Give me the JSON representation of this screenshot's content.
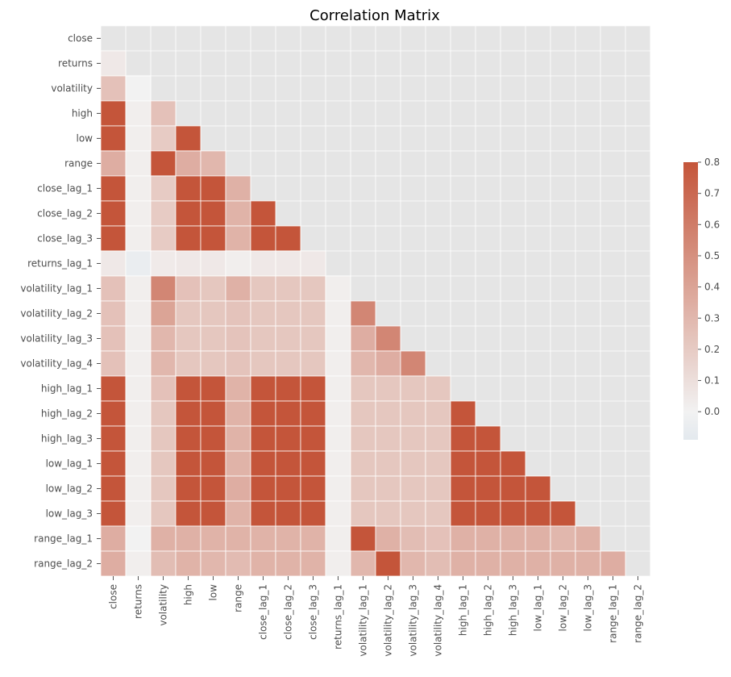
{
  "chart_data": {
    "type": "heatmap",
    "title": "Correlation Matrix",
    "xlabel": "",
    "ylabel": "",
    "mask": "upper-triangle-including-diagonal",
    "variables": [
      "close",
      "returns",
      "volatility",
      "high",
      "low",
      "range",
      "close_lag_1",
      "close_lag_2",
      "close_lag_3",
      "returns_lag_1",
      "volatility_lag_1",
      "volatility_lag_2",
      "volatility_lag_3",
      "volatility_lag_4",
      "high_lag_1",
      "high_lag_2",
      "high_lag_3",
      "low_lag_1",
      "low_lag_2",
      "low_lag_3",
      "range_lag_1",
      "range_lag_2"
    ],
    "values": [
      [],
      [
        0.05
      ],
      [
        0.25,
        0.0
      ],
      [
        0.8,
        0.02,
        0.25
      ],
      [
        0.8,
        0.02,
        0.2,
        0.8
      ],
      [
        0.35,
        0.02,
        0.8,
        0.35,
        0.3
      ],
      [
        0.8,
        0.02,
        0.2,
        0.8,
        0.8,
        0.33
      ],
      [
        0.8,
        0.02,
        0.2,
        0.8,
        0.8,
        0.32,
        0.8
      ],
      [
        0.8,
        0.02,
        0.2,
        0.8,
        0.8,
        0.32,
        0.8,
        0.8
      ],
      [
        0.05,
        -0.05,
        0.04,
        0.05,
        0.05,
        0.02,
        0.05,
        0.05,
        0.05
      ],
      [
        0.25,
        0.02,
        0.55,
        0.25,
        0.22,
        0.33,
        0.22,
        0.22,
        0.22,
        0.02
      ],
      [
        0.25,
        0.02,
        0.4,
        0.22,
        0.22,
        0.24,
        0.22,
        0.22,
        0.22,
        0.02,
        0.55
      ],
      [
        0.25,
        0.02,
        0.3,
        0.22,
        0.22,
        0.24,
        0.22,
        0.22,
        0.22,
        0.02,
        0.35,
        0.55
      ],
      [
        0.25,
        0.02,
        0.3,
        0.22,
        0.22,
        0.24,
        0.22,
        0.22,
        0.22,
        0.02,
        0.3,
        0.35,
        0.55
      ],
      [
        0.8,
        0.02,
        0.25,
        0.8,
        0.8,
        0.32,
        0.8,
        0.8,
        0.8,
        0.02,
        0.22,
        0.22,
        0.22,
        0.22
      ],
      [
        0.8,
        0.02,
        0.22,
        0.8,
        0.8,
        0.32,
        0.8,
        0.8,
        0.8,
        0.02,
        0.22,
        0.22,
        0.22,
        0.22,
        0.8
      ],
      [
        0.8,
        0.02,
        0.22,
        0.8,
        0.8,
        0.32,
        0.8,
        0.8,
        0.8,
        0.02,
        0.22,
        0.22,
        0.22,
        0.22,
        0.8,
        0.8
      ],
      [
        0.8,
        0.02,
        0.22,
        0.8,
        0.8,
        0.32,
        0.8,
        0.8,
        0.8,
        0.02,
        0.22,
        0.22,
        0.22,
        0.22,
        0.8,
        0.8,
        0.8
      ],
      [
        0.8,
        0.02,
        0.22,
        0.8,
        0.8,
        0.35,
        0.8,
        0.8,
        0.8,
        0.02,
        0.22,
        0.22,
        0.22,
        0.22,
        0.8,
        0.8,
        0.8,
        0.8
      ],
      [
        0.8,
        0.02,
        0.22,
        0.8,
        0.8,
        0.32,
        0.8,
        0.8,
        0.8,
        0.02,
        0.22,
        0.22,
        0.22,
        0.22,
        0.8,
        0.8,
        0.8,
        0.8,
        0.8
      ],
      [
        0.35,
        0.0,
        0.33,
        0.33,
        0.32,
        0.32,
        0.32,
        0.32,
        0.32,
        0.02,
        0.8,
        0.33,
        0.27,
        0.25,
        0.33,
        0.33,
        0.33,
        0.33,
        0.3,
        0.33
      ],
      [
        0.35,
        0.02,
        0.27,
        0.32,
        0.3,
        0.28,
        0.32,
        0.32,
        0.32,
        0.02,
        0.3,
        0.8,
        0.3,
        0.27,
        0.33,
        0.33,
        0.33,
        0.33,
        0.33,
        0.33,
        0.35
      ]
    ],
    "colorbar": {
      "min": -0.09,
      "max": 0.8,
      "ticks": [
        0.8,
        0.7,
        0.6,
        0.5,
        0.4,
        0.3,
        0.2,
        0.1,
        0.0
      ],
      "tick_labels": [
        "0.8",
        "0.7",
        "0.6",
        "0.5",
        "0.4",
        "0.3",
        "0.2",
        "0.1",
        "0.0"
      ],
      "colors": {
        "neg": "#e3e9ee",
        "mid": "#f2f2f2",
        "pos": "#c4553a"
      }
    },
    "masked_color": "#e5e5e5",
    "grid_color": "#ffffff",
    "grid": true
  }
}
